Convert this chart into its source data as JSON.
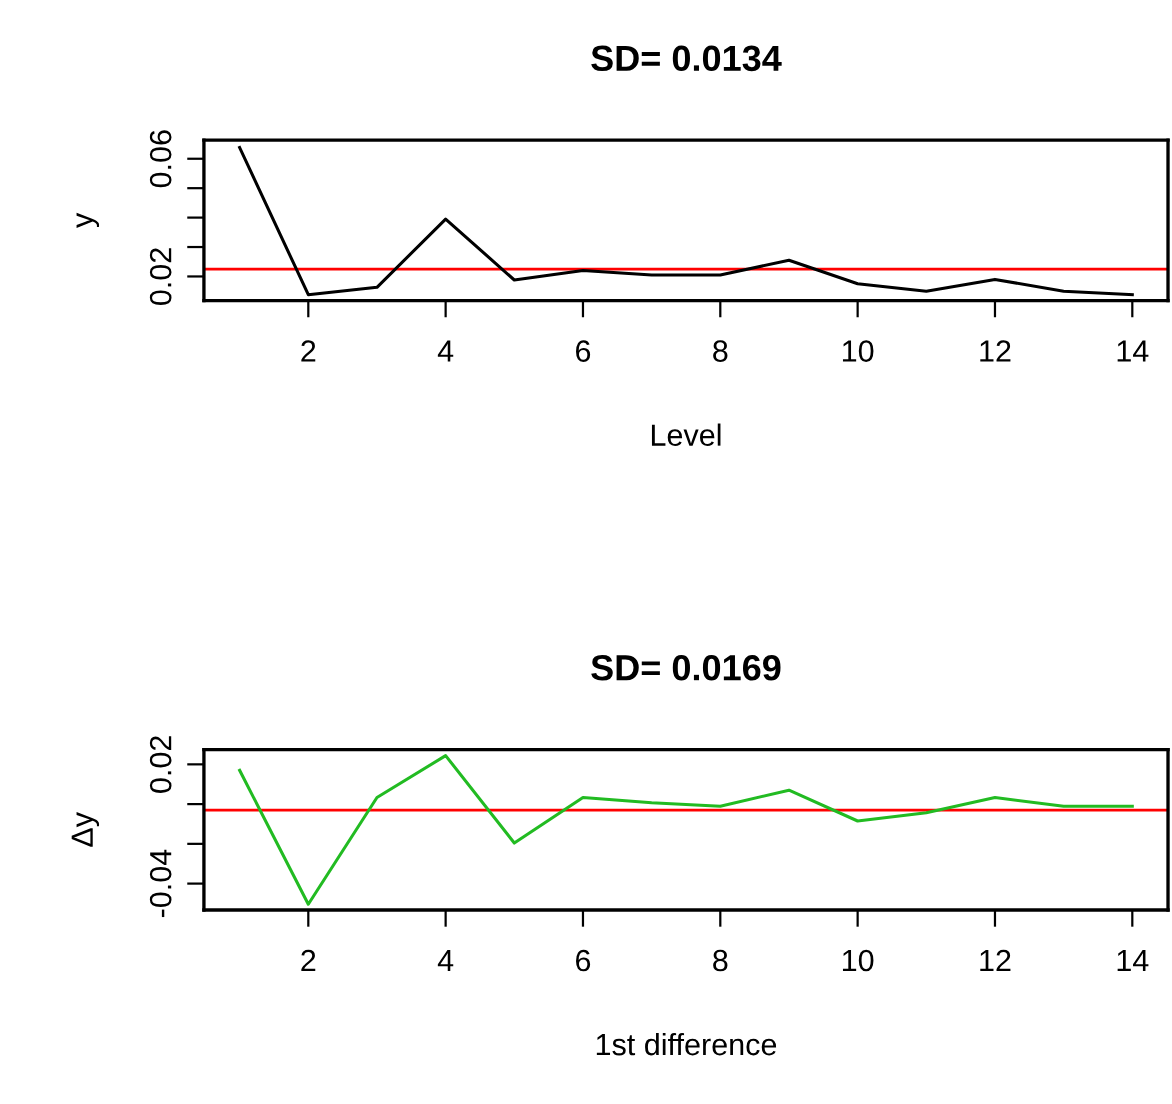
{
  "chart_data": [
    {
      "type": "line",
      "title": "SD= 0.0134",
      "xlabel": "Level",
      "ylabel": "y",
      "x": [
        1,
        2,
        3,
        4,
        5,
        6,
        7,
        8,
        9,
        10,
        11,
        12,
        13,
        14
      ],
      "series": [
        {
          "color": "#000000",
          "values": [
            0.0638,
            0.0138,
            0.0163,
            0.0395,
            0.0188,
            0.022,
            0.0205,
            0.0205,
            0.0255,
            0.0175,
            0.015,
            0.019,
            0.015,
            0.0138
          ]
        }
      ],
      "xlim": [
        0.48,
        14.52
      ],
      "xticks": [
        2,
        4,
        6,
        8,
        10,
        12,
        14
      ],
      "ylim": [
        0.0118,
        0.0663
      ],
      "yticks": [
        0.02,
        {
          "value": 0.03,
          "label": null
        },
        {
          "value": 0.04,
          "label": null
        },
        {
          "value": 0.05,
          "label": null
        },
        {
          "value": 0.06,
          "label": "0.06"
        }
      ],
      "ref_lines": [
        {
          "axis": "y",
          "value": 0.0225,
          "color": "#ff0000"
        }
      ],
      "grid": false,
      "legend": false
    },
    {
      "type": "line",
      "title": "SD= 0.0169",
      "xlabel": "1st difference",
      "ylabel": "Δy",
      "x": [
        1,
        2,
        3,
        4,
        5,
        6,
        7,
        8,
        9,
        10,
        11,
        12,
        13,
        14
      ],
      "series": [
        {
          "color": "#22bb22",
          "values": [
            0.017,
            -0.0504,
            0.0033,
            0.0244,
            -0.0196,
            0.0033,
            0.0007,
            -0.0011,
            0.007,
            -0.0085,
            -0.0044,
            0.0033,
            -0.0011,
            -0.0011
          ]
        }
      ],
      "xlim": [
        0.48,
        14.52
      ],
      "xticks": [
        2,
        4,
        6,
        8,
        10,
        12,
        14
      ],
      "ylim": [
        -0.0533,
        0.0274
      ],
      "yticks": [
        {
          "value": -0.04,
          "label": "-0.04"
        },
        {
          "value": -0.02,
          "label": null
        },
        {
          "value": 0.0,
          "label": null
        },
        0.02
      ],
      "ref_lines": [
        {
          "axis": "y",
          "value": -0.003,
          "color": "#ff0000"
        }
      ],
      "grid": false,
      "legend": false
    }
  ]
}
